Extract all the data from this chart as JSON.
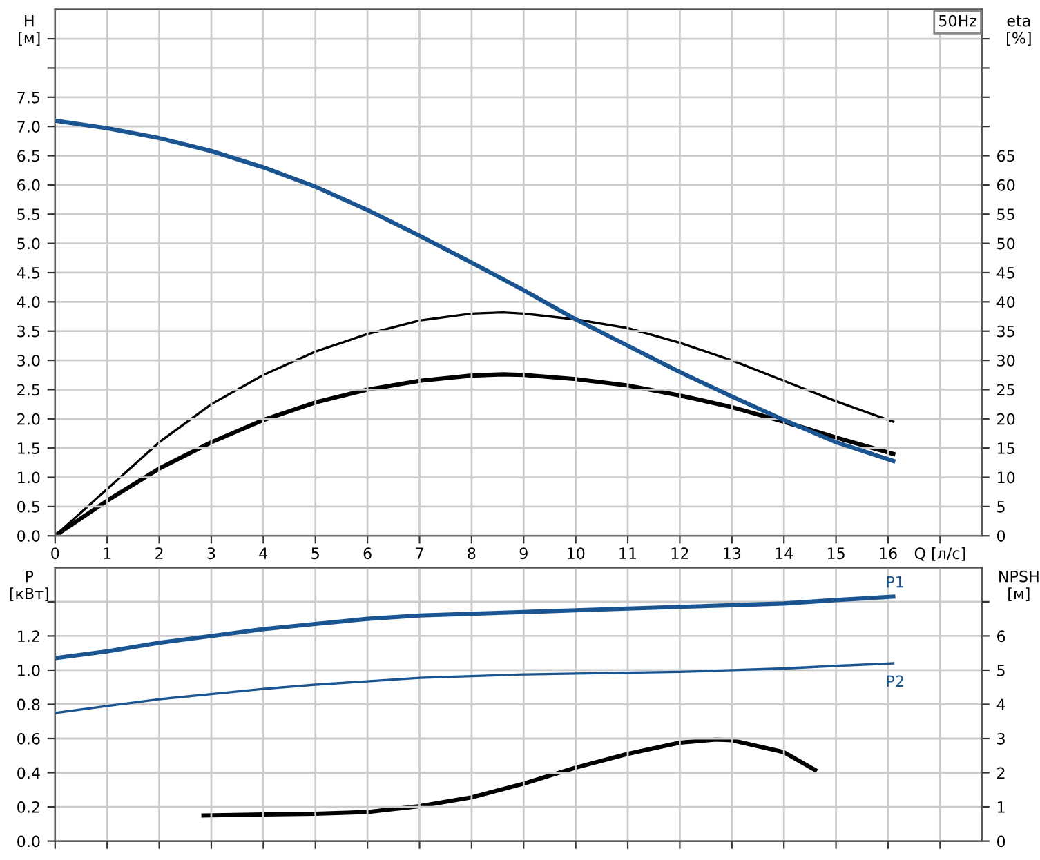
{
  "chart_data": [
    {
      "type": "line",
      "title": "50Hz",
      "ylabel": "H\n[м]",
      "y2label": "eta\n[%]",
      "grid": true,
      "legend": false,
      "marker": "none",
      "line_style": "solid",
      "xlim": [
        0,
        17.8
      ],
      "xticks": [
        0,
        1,
        2,
        3,
        4,
        5,
        6,
        7,
        8,
        9,
        10,
        11,
        12,
        13,
        14,
        15,
        16,
        {
          "value": 17,
          "label": "Q [л/с]"
        }
      ],
      "ylim": [
        0,
        9
      ],
      "yticks": [
        {
          "value": 0,
          "label": "0.0"
        },
        0.5,
        {
          "value": 1,
          "label": "1.0"
        },
        1.5,
        {
          "value": 2,
          "label": "2.0"
        },
        2.5,
        {
          "value": 3,
          "label": "3.0"
        },
        3.5,
        {
          "value": 4,
          "label": "4.0"
        },
        4.5,
        {
          "value": 5,
          "label": "5.0"
        },
        5.5,
        {
          "value": 6,
          "label": "6.0"
        },
        6.5,
        {
          "value": 7,
          "label": "7.0"
        },
        7.5,
        {
          "value": 8,
          "label": null
        },
        {
          "value": 8.5,
          "label": null
        }
      ],
      "y2lim": [
        0,
        90
      ],
      "y2ticks": [
        0,
        5,
        10,
        15,
        20,
        25,
        30,
        35,
        40,
        45,
        50,
        55,
        60,
        65,
        {
          "value": 70,
          "label": null
        },
        {
          "value": 75,
          "label": null
        },
        {
          "value": 80,
          "label": null
        },
        {
          "value": 85,
          "label": null
        }
      ],
      "series": [
        {
          "color": "#1a5592",
          "x": [
            0,
            1,
            2,
            3,
            4,
            5,
            6,
            7,
            8,
            9,
            10,
            11,
            12,
            13,
            14,
            15,
            16.1
          ],
          "values": [
            7.1,
            6.97,
            6.8,
            6.58,
            6.3,
            5.97,
            5.57,
            5.13,
            4.67,
            4.2,
            3.7,
            3.25,
            2.8,
            2.38,
            1.98,
            1.6,
            1.28
          ]
        },
        {
          "color": "#000000",
          "axis": "y2",
          "x": [
            0,
            1,
            2,
            3,
            4,
            5,
            6,
            7,
            8,
            8.6,
            9,
            10,
            11,
            12,
            13,
            14,
            15,
            16.1
          ],
          "values": [
            0,
            8,
            16,
            22.5,
            27.5,
            31.5,
            34.5,
            36.8,
            38,
            38.2,
            38,
            37,
            35.5,
            33,
            30,
            26.5,
            23,
            19.5
          ]
        },
        {
          "color": "#000000",
          "axis": "y2",
          "x": [
            0,
            1,
            2,
            3,
            4,
            5,
            6,
            7,
            8,
            8.6,
            9,
            10,
            11,
            12,
            13,
            14,
            15,
            16.1
          ],
          "values": [
            0,
            6,
            11.5,
            16,
            19.8,
            22.8,
            25,
            26.5,
            27.4,
            27.6,
            27.5,
            26.8,
            25.7,
            24,
            22,
            19.5,
            16.8,
            14
          ]
        }
      ]
    },
    {
      "type": "line",
      "ylabel": "P\n[кВт]",
      "y2label": "NPSH\n[м]",
      "grid": true,
      "legend": false,
      "marker": "none",
      "line_style": "solid",
      "tick_labels": "y",
      "xlim": [
        0,
        17.8
      ],
      "xticks": [
        0,
        1,
        2,
        3,
        4,
        5,
        6,
        7,
        8,
        9,
        10,
        11,
        12,
        13,
        14,
        15,
        16,
        {
          "value": 17,
          "label": null
        }
      ],
      "ylim": [
        0,
        1.6
      ],
      "yticks": [
        {
          "value": 0,
          "label": "0.0"
        },
        0.2,
        0.4,
        0.6,
        0.8,
        {
          "value": 1,
          "label": "1.0"
        },
        1.2,
        {
          "value": 1.4,
          "label": null
        }
      ],
      "y2lim": [
        0,
        8
      ],
      "y2ticks": [
        0,
        1,
        2,
        3,
        4,
        5,
        6,
        {
          "value": 7,
          "label": null
        }
      ],
      "series": [
        {
          "name": "P1",
          "color": "#1a5592",
          "x": [
            0,
            1,
            2,
            3,
            4,
            5,
            6,
            7,
            8,
            9,
            10,
            11,
            12,
            13,
            14,
            15,
            16.1
          ],
          "values": [
            1.07,
            1.11,
            1.16,
            1.2,
            1.24,
            1.27,
            1.3,
            1.32,
            1.33,
            1.34,
            1.35,
            1.36,
            1.37,
            1.38,
            1.39,
            1.41,
            1.43
          ]
        },
        {
          "name": "P2",
          "color": "#1a5592",
          "x": [
            0,
            1,
            2,
            3,
            4,
            5,
            6,
            7,
            8,
            9,
            10,
            11,
            12,
            13,
            14,
            15,
            16.1
          ],
          "values": [
            0.75,
            0.79,
            0.83,
            0.86,
            0.89,
            0.915,
            0.935,
            0.955,
            0.965,
            0.975,
            0.98,
            0.985,
            0.99,
            1.0,
            1.01,
            1.025,
            1.04
          ]
        },
        {
          "color": "#000000",
          "axis": "y2",
          "x": [
            2.85,
            4,
            5,
            6,
            7,
            8,
            9,
            10,
            11,
            12,
            12.7,
            13,
            14,
            14.6
          ],
          "values": [
            0.75,
            0.78,
            0.8,
            0.85,
            1.02,
            1.28,
            1.68,
            2.15,
            2.55,
            2.88,
            2.97,
            2.95,
            2.6,
            2.08
          ]
        }
      ]
    }
  ]
}
